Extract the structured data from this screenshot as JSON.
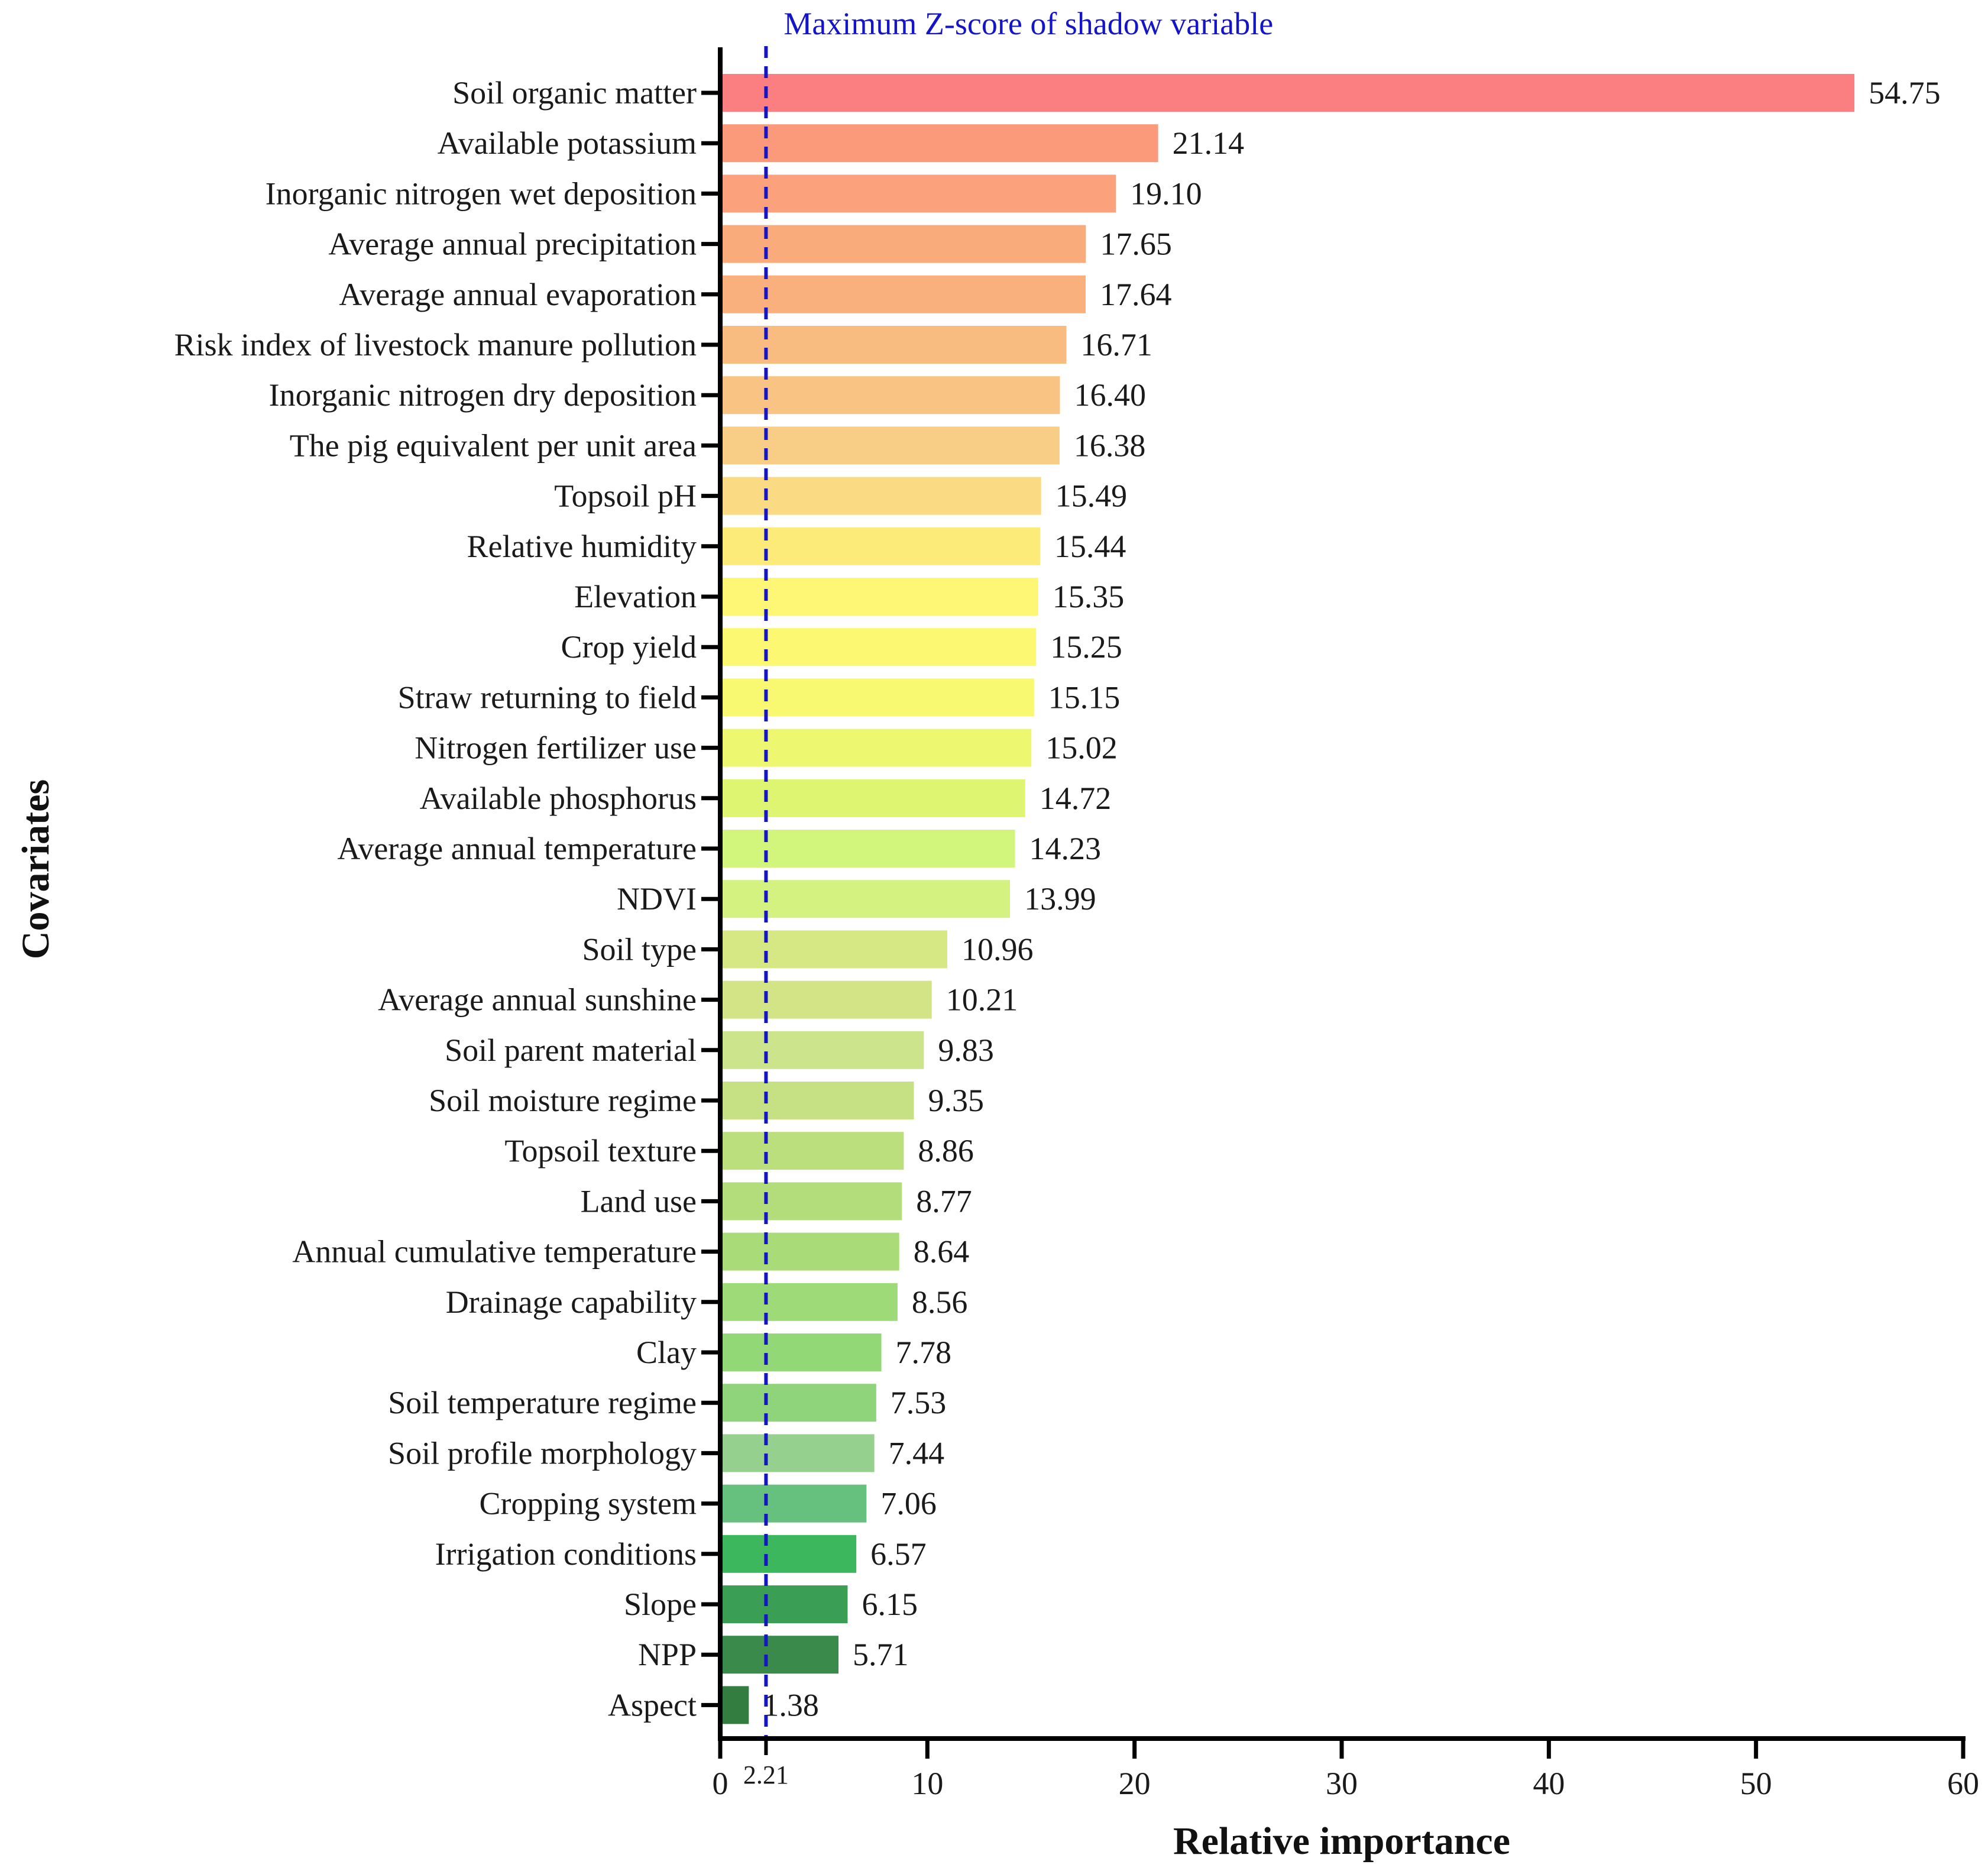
{
  "chart_data": {
    "type": "bar",
    "orientation": "horizontal",
    "title": "",
    "xlabel": "Relative importance",
    "ylabel": "Covariates",
    "xlim": [
      0,
      60
    ],
    "x_ticks": [
      0,
      10,
      20,
      30,
      40,
      50,
      60
    ],
    "grid": false,
    "categories": [
      "Soil organic matter",
      "Available potassium",
      "Inorganic nitrogen wet deposition",
      "Average annual precipitation",
      "Average annual evaporation",
      "Risk index of livestock manure pollution",
      "Inorganic nitrogen dry deposition",
      "The pig equivalent per unit area",
      "Topsoil pH",
      "Relative humidity",
      "Elevation",
      "Crop yield",
      "Straw returning to field",
      "Nitrogen fertilizer use",
      "Available phosphorus",
      "Average annual temperature",
      "NDVI",
      "Soil type",
      "Average annual sunshine",
      "Soil parent material",
      "Soil moisture regime",
      "Topsoil texture",
      "Land use",
      "Annual cumulative temperature",
      "Drainage capability",
      "Clay",
      "Soil temperature regime",
      "Soil profile morphology",
      "Cropping system",
      "Irrigation conditions",
      "Slope",
      "NPP",
      "Aspect"
    ],
    "values": [
      54.75,
      21.14,
      19.1,
      17.65,
      17.64,
      16.71,
      16.4,
      16.38,
      15.49,
      15.44,
      15.35,
      15.25,
      15.15,
      15.02,
      14.72,
      14.23,
      13.99,
      10.96,
      10.21,
      9.83,
      9.35,
      8.86,
      8.77,
      8.64,
      8.56,
      7.78,
      7.53,
      7.44,
      7.06,
      6.57,
      6.15,
      5.71,
      1.38
    ],
    "value_labels": [
      "54.75",
      "21.14",
      "19.10",
      "17.65",
      "17.64",
      "16.71",
      "16.40",
      "16.38",
      "15.49",
      "15.44",
      "15.35",
      "15.25",
      "15.15",
      "15.02",
      "14.72",
      "14.23",
      "13.99",
      "10.96",
      "10.21",
      "9.83",
      "9.35",
      "8.86",
      "8.77",
      "8.64",
      "8.56",
      "7.78",
      "7.53",
      "7.44",
      "7.06",
      "6.57",
      "6.15",
      "5.71",
      "1.38"
    ],
    "colors": [
      "#FB7F80",
      "#FB9A7B",
      "#FBA27C",
      "#FAAB7C",
      "#F9B07C",
      "#F8BB80",
      "#F9C483",
      "#F8CD86",
      "#FADB83",
      "#FCEB78",
      "#FEF775",
      "#FDF872",
      "#F8F970",
      "#EEF770",
      "#DDF571",
      "#D2F57B",
      "#D3F27F",
      "#D6E883",
      "#D2E486",
      "#CCE48B",
      "#C5E184",
      "#BBDF7D",
      "#B3DC7A",
      "#A9DB78",
      "#9EDA77",
      "#93D876",
      "#8FD47B",
      "#96D08E",
      "#66C07E",
      "#3DB75E",
      "#3A9F55",
      "#3A8B4B",
      "#347D41"
    ],
    "reference_line": {
      "value": 2.21,
      "label": "Maximum Z-score of shadow variable",
      "tick_label": "2.21",
      "color": "#1515C8",
      "style": "dashed"
    }
  }
}
